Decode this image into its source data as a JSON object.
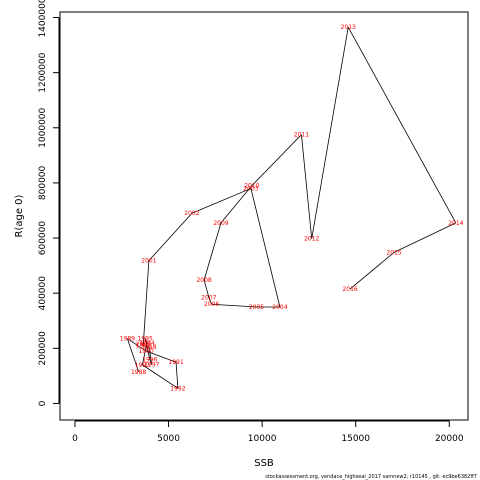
{
  "chart_data": {
    "type": "line",
    "xlabel": "SSB",
    "ylabel": "R(age 0)",
    "xlim": [
      -800,
      21000
    ],
    "ylim": [
      -60000,
      1420000
    ],
    "x_ticks": [
      0,
      5000,
      10000,
      15000,
      20000
    ],
    "y_ticks": [
      0,
      200000,
      400000,
      600000,
      800000,
      1000000,
      1200000,
      1400000
    ],
    "grid": false,
    "line_color": "#000000",
    "label_color": "#ff0000",
    "points": [
      {
        "year": "1988",
        "x": 3400,
        "y": 115000
      },
      {
        "year": "1989",
        "x": 2800,
        "y": 235000
      },
      {
        "year": "1990",
        "x": 3800,
        "y": 190000
      },
      {
        "year": "1991",
        "x": 5400,
        "y": 150000
      },
      {
        "year": "1992",
        "x": 5500,
        "y": 55000
      },
      {
        "year": "1993",
        "x": 3600,
        "y": 140000
      },
      {
        "year": "1994",
        "x": 3850,
        "y": 220000
      },
      {
        "year": "1995",
        "x": 3750,
        "y": 235000
      },
      {
        "year": "1996",
        "x": 4000,
        "y": 160000
      },
      {
        "year": "1997",
        "x": 4100,
        "y": 142000
      },
      {
        "year": "1998",
        "x": 3950,
        "y": 205000
      },
      {
        "year": "1999",
        "x": 3650,
        "y": 210000
      },
      {
        "year": "2000",
        "x": 3650,
        "y": 215000
      },
      {
        "year": "2001",
        "x": 3950,
        "y": 518000
      },
      {
        "year": "2002",
        "x": 6250,
        "y": 690000
      },
      {
        "year": "2003",
        "x": 9400,
        "y": 780000
      },
      {
        "year": "2004",
        "x": 10950,
        "y": 350000
      },
      {
        "year": "2005",
        "x": 9700,
        "y": 350000
      },
      {
        "year": "2006",
        "x": 7300,
        "y": 360000
      },
      {
        "year": "2007",
        "x": 7150,
        "y": 385000
      },
      {
        "year": "2008",
        "x": 6900,
        "y": 448000
      },
      {
        "year": "2009",
        "x": 7800,
        "y": 655000
      },
      {
        "year": "2010",
        "x": 9450,
        "y": 790000
      },
      {
        "year": "2011",
        "x": 12100,
        "y": 975000
      },
      {
        "year": "2012",
        "x": 12650,
        "y": 598000
      },
      {
        "year": "2013",
        "x": 14600,
        "y": 1365000
      },
      {
        "year": "2014",
        "x": 20350,
        "y": 655000
      },
      {
        "year": "2015",
        "x": 17050,
        "y": 548000
      },
      {
        "year": "2016",
        "x": 14700,
        "y": 415000
      }
    ]
  },
  "footer_text": "stockassessment.org,  vendace_highseal_2017  samnew2, r10145 , git: ec9be6382ff7"
}
